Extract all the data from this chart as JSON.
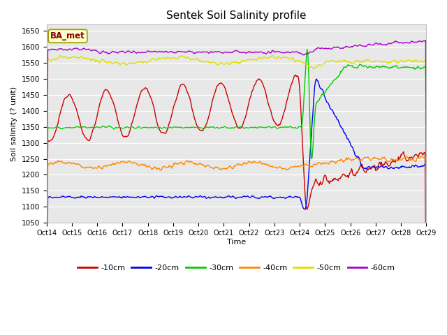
{
  "title": "Sentek Soil Salinity profile",
  "xlabel": "Time",
  "ylabel": "Soil salinity (? unit)",
  "ylim": [
    1050,
    1670
  ],
  "yticks": [
    1050,
    1100,
    1150,
    1200,
    1250,
    1300,
    1350,
    1400,
    1450,
    1500,
    1550,
    1600,
    1650
  ],
  "xtick_labels": [
    "Oct 14",
    "Oct 15",
    "Oct 16",
    "Oct 17",
    "Oct 18",
    "Oct 19",
    "Oct 20",
    "Oct 21",
    "Oct 22",
    "Oct 23",
    "Oct 24",
    "Oct 25",
    "Oct 26",
    "Oct 27",
    "Oct 28",
    "Oct 29"
  ],
  "legend_label": "BA_met",
  "bg_color": "#e8e8e8",
  "line_colors": {
    "-10cm": "#cc0000",
    "-20cm": "#0000ee",
    "-30cm": "#00cc00",
    "-40cm": "#ff8800",
    "-50cm": "#dddd00",
    "-60cm": "#aa00cc"
  },
  "n_points": 600
}
